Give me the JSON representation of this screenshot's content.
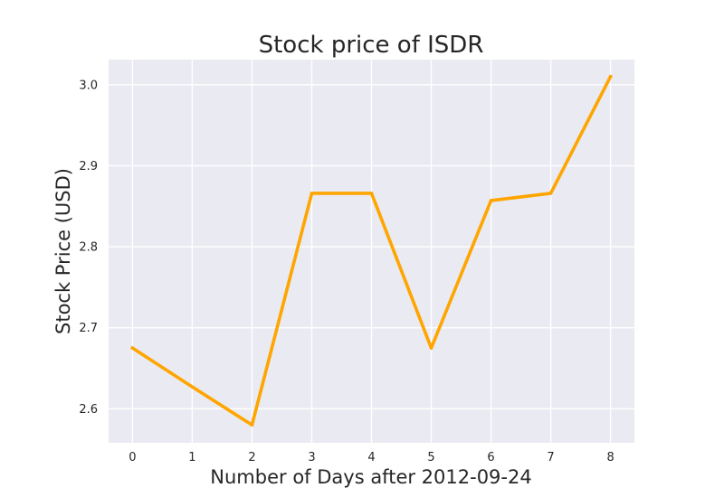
{
  "chart_data": {
    "type": "line",
    "title": "Stock price of ISDR",
    "xlabel": "Number of Days after 2012-09-24",
    "ylabel": "Stock Price (USD)",
    "x": [
      0,
      1,
      2,
      3,
      4,
      5,
      6,
      7,
      8
    ],
    "series": [
      {
        "values": [
          2.675,
          2.627,
          2.58,
          2.866,
          2.866,
          2.675,
          2.857,
          2.866,
          3.01
        ],
        "color": "#ffa500"
      }
    ],
    "xticks": [
      "0",
      "1",
      "2",
      "3",
      "4",
      "5",
      "6",
      "7",
      "8"
    ],
    "yticks": [
      "2.6",
      "2.7",
      "2.8",
      "2.9",
      "3.0"
    ],
    "xlim": [
      -0.4,
      8.4
    ],
    "ylim": [
      2.558,
      3.031
    ],
    "grid": true,
    "legend": "none",
    "plot_background": "#eaeaf2",
    "grid_color": "#ffffff"
  }
}
